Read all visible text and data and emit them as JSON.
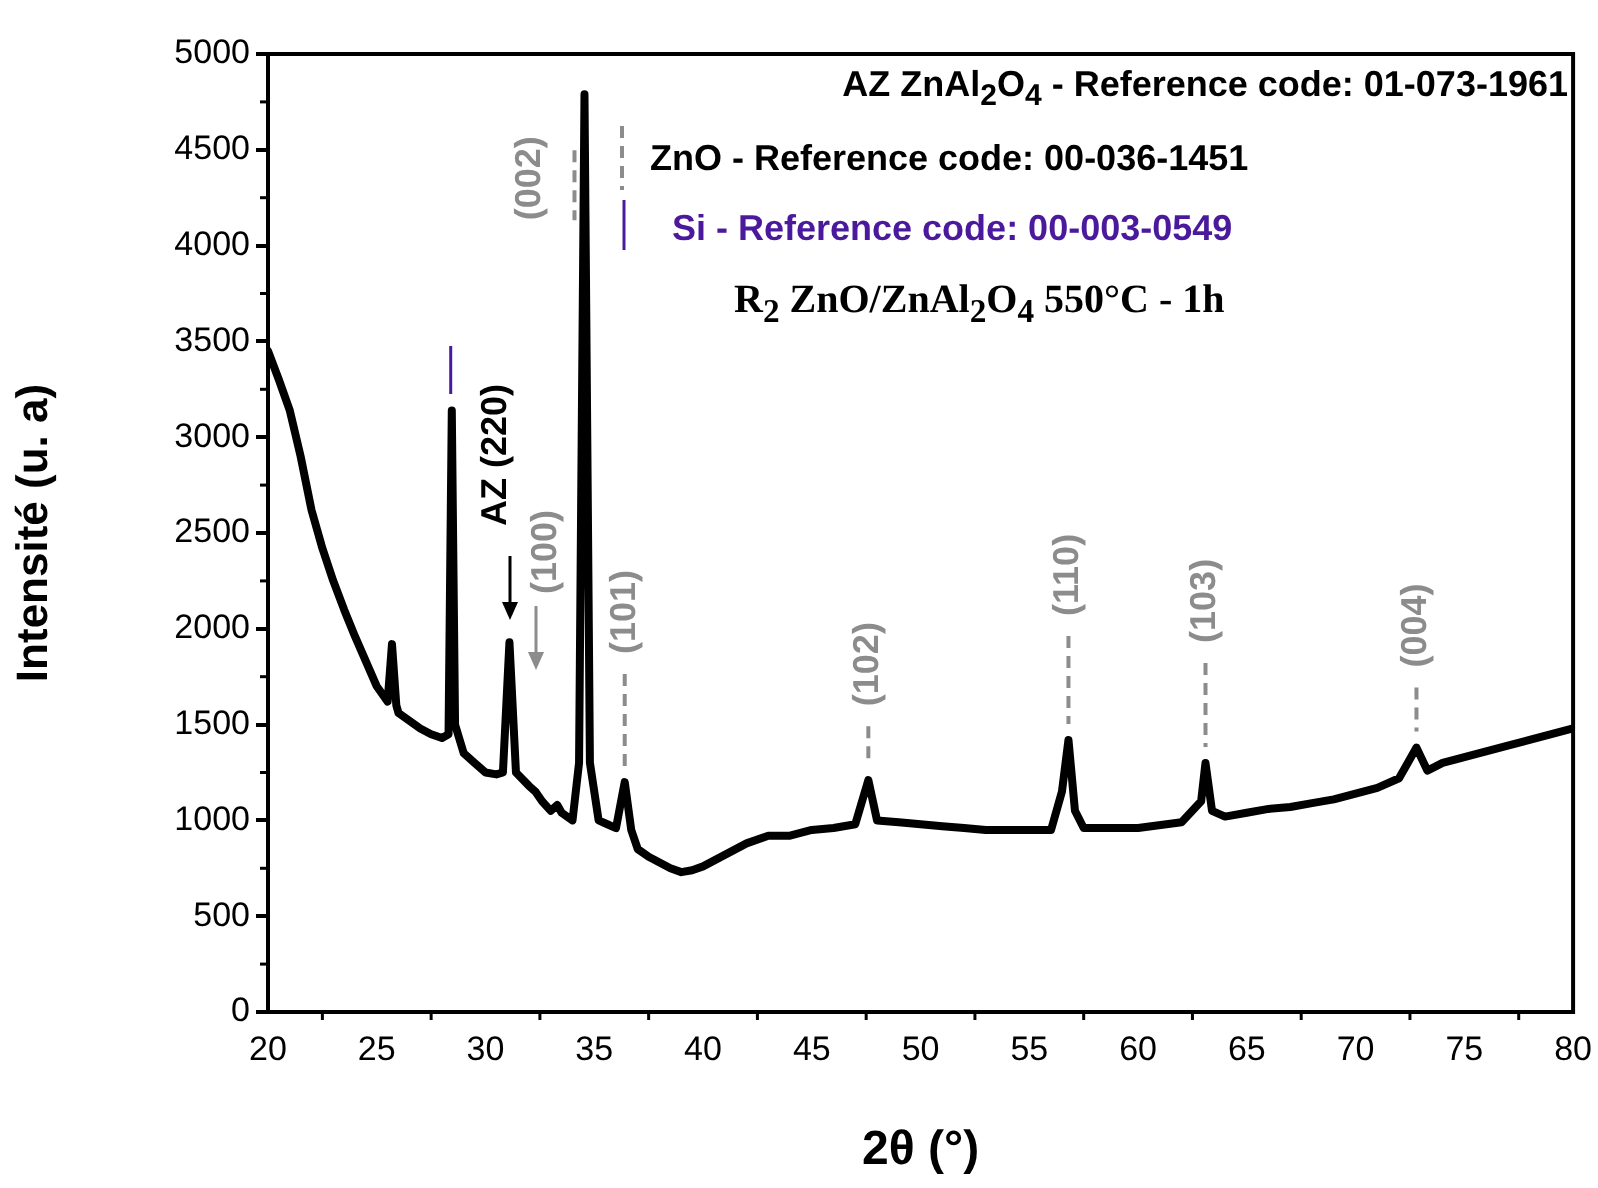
{
  "chart_data": {
    "type": "line",
    "xlabel": "2θ (°)",
    "ylabel": "Intensité (u. a)",
    "xlim": [
      20,
      80
    ],
    "xticks": [
      20,
      25,
      30,
      35,
      40,
      45,
      50,
      55,
      60,
      65,
      70,
      75,
      80
    ],
    "ylim": [
      0,
      5000
    ],
    "yticks": [
      0,
      500,
      1000,
      1500,
      2000,
      2500,
      3000,
      3500,
      4000,
      4500,
      5000
    ],
    "grid": false,
    "legend": false,
    "marker": "none",
    "line_style": "solid",
    "series": [
      {
        "color": "#000000",
        "x": [
          20,
          20.5,
          21,
          21.5,
          22,
          22.5,
          23,
          23.5,
          24,
          24.5,
          25,
          25.5,
          25.7,
          25.9,
          26,
          26.5,
          27,
          27.5,
          28,
          28.3,
          28.45,
          28.6,
          29,
          29.5,
          30,
          30.5,
          30.8,
          31.1,
          31.4,
          32,
          32.3,
          32.6,
          33,
          33.3,
          33.5,
          34,
          34.3,
          34.55,
          34.8,
          35.2,
          35.6,
          36,
          36.4,
          36.7,
          37,
          37.5,
          38,
          38.5,
          39,
          39.5,
          40,
          41,
          42,
          43,
          44,
          45,
          46,
          47,
          47.6,
          48,
          49,
          50,
          51,
          52,
          53,
          54,
          55,
          56,
          56.5,
          56.8,
          57.1,
          57.5,
          58,
          60,
          62,
          62.9,
          63.1,
          63.4,
          64,
          65,
          66,
          67,
          68,
          69,
          70,
          71,
          72,
          72.8,
          73.3,
          74,
          75,
          76,
          77,
          78,
          79,
          80
        ],
        "values": [
          3450,
          3300,
          3140,
          2900,
          2620,
          2420,
          2250,
          2100,
          1960,
          1830,
          1700,
          1620,
          1920,
          1600,
          1560,
          1520,
          1480,
          1450,
          1430,
          1450,
          3140,
          1500,
          1350,
          1300,
          1250,
          1240,
          1250,
          1930,
          1250,
          1180,
          1150,
          1100,
          1050,
          1080,
          1040,
          1000,
          1300,
          4790,
          1300,
          1000,
          980,
          960,
          1200,
          950,
          850,
          810,
          780,
          750,
          730,
          740,
          760,
          820,
          880,
          920,
          920,
          950,
          960,
          980,
          1210,
          1000,
          990,
          980,
          970,
          960,
          950,
          950,
          950,
          950,
          1150,
          1420,
          1050,
          960,
          960,
          960,
          990,
          1100,
          1300,
          1050,
          1020,
          1040,
          1060,
          1070,
          1090,
          1110,
          1140,
          1170,
          1220,
          1380,
          1260,
          1300,
          1330,
          1360,
          1390,
          1420,
          1450,
          1480
        ]
      }
    ],
    "annotations": [
      "AZ ZnAl$_{2}$O$_{4}$ - Reference code: 01-073-1961",
      "ZnO - Reference code: 00-036-1451",
      "Si - Reference code: 00-003-0549",
      "R$_{2}$ ZnO/ZnAl$_{2}$O$_{4}$ 550°C - 1h",
      "AZ (220)",
      "(100)",
      {
        "text": "(002)",
        "x": 34.55,
        "y": 4790
      },
      {
        "text": "(101)",
        "x": 36.4,
        "y": 1200
      },
      {
        "text": "(102)",
        "x": 47.6,
        "y": 1210
      },
      {
        "text": "(110)",
        "x": 56.8,
        "y": 1420
      },
      {
        "text": "(103)",
        "x": 63.1,
        "y": 1300
      },
      {
        "text": "(004)",
        "x": 72.8,
        "y": 1380
      }
    ]
  }
}
